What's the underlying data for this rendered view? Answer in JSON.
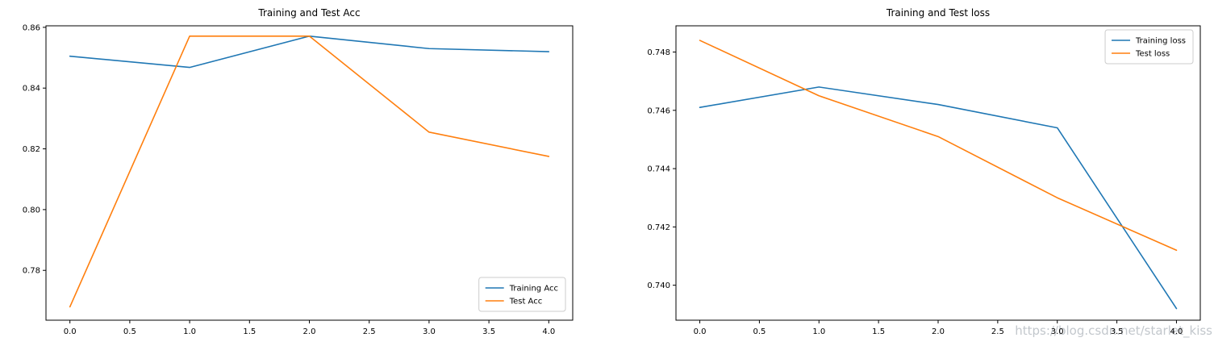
{
  "figure": {
    "background": "#ffffff",
    "watermark": "https://blog.csdn.net/starlet_kiss"
  },
  "style": {
    "axis_color": "#000000",
    "tick_label_color": "#000000",
    "legend_border_color": "#cccccc",
    "legend_background": "#ffffff",
    "watermark_color": "#bcc1c7",
    "series_blue": "#1f77b4",
    "series_orange": "#ff7f0e"
  },
  "chart_data": [
    {
      "type": "line",
      "title": "Training and Test Acc",
      "x": [
        0,
        1,
        2,
        3,
        4
      ],
      "series": [
        {
          "name": "Training Acc",
          "color": "#1f77b4",
          "values": [
            0.8505,
            0.8468,
            0.8571,
            0.853,
            0.852
          ]
        },
        {
          "name": "Test Acc",
          "color": "#ff7f0e",
          "values": [
            0.768,
            0.8571,
            0.8571,
            0.8255,
            0.8175
          ]
        }
      ],
      "xlim": [
        -0.2,
        4.2
      ],
      "ylim": [
        0.7636,
        0.8605
      ],
      "xticks": [
        0,
        0.5,
        1,
        1.5,
        2,
        2.5,
        3,
        3.5,
        4
      ],
      "xtick_labels": [
        "0.0",
        "0.5",
        "1.0",
        "1.5",
        "2.0",
        "2.5",
        "3.0",
        "3.5",
        "4.0"
      ],
      "yticks": [
        0.78,
        0.8,
        0.82,
        0.84,
        0.86
      ],
      "ytick_labels": [
        "0.78",
        "0.80",
        "0.82",
        "0.84",
        "0.86"
      ],
      "legend": {
        "loc": "lower right",
        "labels": [
          "Training Acc",
          "Test Acc"
        ]
      },
      "grid": false
    },
    {
      "type": "line",
      "title": "Training and Test loss",
      "x": [
        0,
        1,
        2,
        3,
        4
      ],
      "series": [
        {
          "name": "Training loss",
          "color": "#1f77b4",
          "values": [
            0.7461,
            0.7468,
            0.7462,
            0.7454,
            0.7392
          ]
        },
        {
          "name": "Test loss",
          "color": "#ff7f0e",
          "values": [
            0.7484,
            0.7465,
            0.7451,
            0.743,
            0.7412
          ]
        }
      ],
      "xlim": [
        -0.2,
        4.2
      ],
      "ylim": [
        0.7388,
        0.7489
      ],
      "xticks": [
        0,
        0.5,
        1,
        1.5,
        2,
        2.5,
        3,
        3.5,
        4
      ],
      "xtick_labels": [
        "0.0",
        "0.5",
        "1.0",
        "1.5",
        "2.0",
        "2.5",
        "3.0",
        "3.5",
        "4.0"
      ],
      "yticks": [
        0.74,
        0.742,
        0.744,
        0.746,
        0.748
      ],
      "ytick_labels": [
        "0.740",
        "0.742",
        "0.744",
        "0.746",
        "0.748"
      ],
      "legend": {
        "loc": "upper right",
        "labels": [
          "Training loss",
          "Test loss"
        ]
      },
      "grid": false
    }
  ]
}
